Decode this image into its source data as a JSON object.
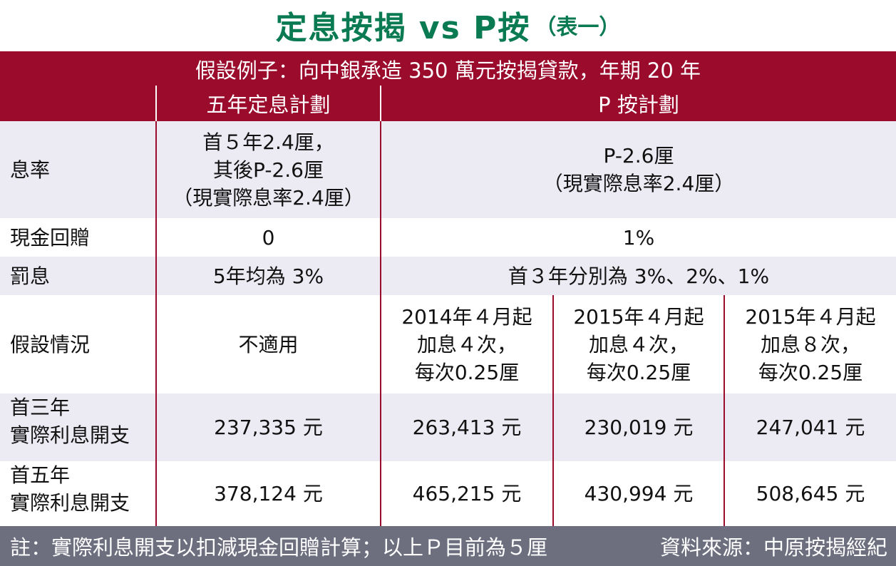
{
  "title": {
    "main": "定息按揭 vs P按",
    "sub": "（表一）"
  },
  "banner": "假設例子：向中銀承造 350 萬元按揭貸款，年期 20 年",
  "headers": {
    "fixed": "五年定息計劃",
    "prime": "P 按計劃"
  },
  "rows": {
    "rate": {
      "label": "息率",
      "fixed": [
        "首５年2.4厘，",
        "其後P-2.6厘",
        "（現實際息率2.4厘）"
      ],
      "prime": [
        "P-2.6厘",
        "（現實際息率2.4厘）"
      ]
    },
    "cashback": {
      "label": "現金回贈",
      "fixed": "0",
      "prime": "1%"
    },
    "penalty": {
      "label": "罰息",
      "fixed": "5年均為 3%",
      "prime": "首３年分別為 3%、2%、1%"
    },
    "scenario": {
      "label": "假設情況",
      "fixed": "不適用",
      "prime": [
        [
          "2014年４月起",
          "加息４次，",
          "每次0.25厘"
        ],
        [
          "2015年４月起",
          "加息４次，",
          "每次0.25厘"
        ],
        [
          "2015年４月起",
          "加息８次，",
          "每次0.25厘"
        ]
      ]
    },
    "three_year": {
      "label": [
        "首三年",
        "實際利息開支"
      ],
      "fixed": "237,335 元",
      "prime": [
        "263,413 元",
        "230,019 元",
        "247,041 元"
      ]
    },
    "five_year": {
      "label": [
        "首五年",
        "實際利息開支"
      ],
      "fixed": "378,124 元",
      "prime": [
        "465,215 元",
        "430,994 元",
        "508,645 元"
      ]
    }
  },
  "footer": {
    "note": "註：實際利息開支以扣減現金回贈計算；以上Ｐ目前為５厘",
    "source": "資料來源：中原按揭經紀"
  },
  "colors": {
    "title": "#0a7a52",
    "header_bg": "#9a0b2c",
    "shade": "#ecebf3",
    "footer_bg": "#6d6f7f"
  }
}
